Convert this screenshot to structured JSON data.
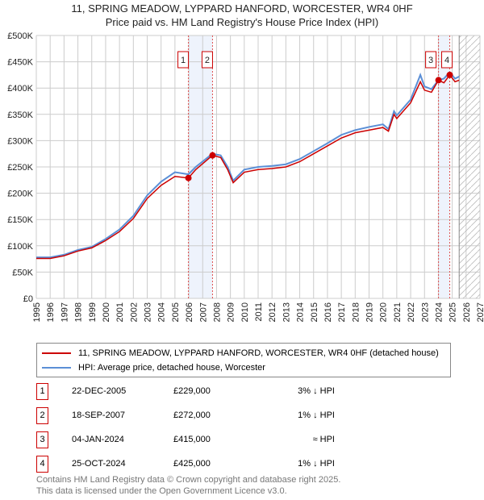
{
  "chart_data": {
    "type": "line",
    "title": "11, SPRING MEADOW, LYPPARD HANFORD, WORCESTER, WR4 0HF",
    "subtitle": "Price paid vs. HM Land Registry's House Price Index (HPI)",
    "xlim": [
      1995,
      2027
    ],
    "ylim": [
      0,
      500000
    ],
    "xticks": [
      "1995",
      "1996",
      "1997",
      "1998",
      "1999",
      "2000",
      "2001",
      "2002",
      "2003",
      "2004",
      "2005",
      "2006",
      "2007",
      "2008",
      "2009",
      "2010",
      "2011",
      "2012",
      "2013",
      "2014",
      "2015",
      "2016",
      "2017",
      "2018",
      "2019",
      "2020",
      "2021",
      "2022",
      "2023",
      "2024",
      "2025",
      "2026",
      "2027"
    ],
    "yticks": [
      {
        "v": 0,
        "label": "£0"
      },
      {
        "v": 50000,
        "label": "£50K"
      },
      {
        "v": 100000,
        "label": "£100K"
      },
      {
        "v": 150000,
        "label": "£150K"
      },
      {
        "v": 200000,
        "label": "£200K"
      },
      {
        "v": 250000,
        "label": "£250K"
      },
      {
        "v": 300000,
        "label": "£300K"
      },
      {
        "v": 350000,
        "label": "£350K"
      },
      {
        "v": 400000,
        "label": "£400K"
      },
      {
        "v": 450000,
        "label": "£450K"
      },
      {
        "v": 500000,
        "label": "£500K"
      }
    ],
    "series": [
      {
        "name": "11, SPRING MEADOW, LYPPARD HANFORD, WORCESTER, WR4 0HF (detached house)",
        "color": "#cc0000",
        "x": [
          1995,
          1996,
          1997,
          1998,
          1999,
          2000,
          2001,
          2002,
          2003,
          2004,
          2005,
          2005.97,
          2006.5,
          2007.7,
          2008.3,
          2008.8,
          2009.2,
          2010,
          2011,
          2012,
          2013,
          2014,
          2015,
          2016,
          2017,
          2018,
          2019,
          2020,
          2020.4,
          2020.8,
          2021,
          2022,
          2022.7,
          2023,
          2023.5,
          2024.01,
          2024.4,
          2024.82,
          2025.2,
          2025.5
        ],
        "y": [
          76000,
          76000,
          81000,
          90000,
          96000,
          110000,
          127000,
          152000,
          190000,
          215000,
          232000,
          229000,
          245000,
          272000,
          268000,
          245000,
          220000,
          240000,
          245000,
          247000,
          250000,
          260000,
          275000,
          290000,
          305000,
          315000,
          320000,
          325000,
          318000,
          350000,
          342000,
          372000,
          412000,
          396000,
          392000,
          415000,
          410000,
          425000,
          412000,
          415000
        ]
      },
      {
        "name": "HPI: Average price, detached house, Worcester",
        "color": "#5b8fd6",
        "x": [
          1995,
          1996,
          1997,
          1998,
          1999,
          2000,
          2001,
          2002,
          2003,
          2004,
          2005,
          2005.97,
          2006.5,
          2007.7,
          2008.3,
          2008.8,
          2009.2,
          2010,
          2011,
          2012,
          2013,
          2014,
          2015,
          2016,
          2017,
          2018,
          2019,
          2020,
          2020.4,
          2020.8,
          2021,
          2022,
          2022.7,
          2023,
          2023.5,
          2024.01,
          2024.4,
          2024.82,
          2025.2,
          2025.5
        ],
        "y": [
          78000,
          78000,
          83000,
          92000,
          98000,
          113000,
          131000,
          157000,
          196000,
          222000,
          240000,
          236000,
          250000,
          275000,
          272000,
          250000,
          224000,
          245000,
          250000,
          252000,
          255000,
          265000,
          280000,
          295000,
          311000,
          320000,
          326000,
          331000,
          322000,
          356000,
          348000,
          378000,
          425000,
          403000,
          398000,
          415000,
          418000,
          430000,
          418000,
          422000
        ]
      }
    ],
    "sales": [
      {
        "id": "1",
        "date": "22-DEC-2005",
        "x": 2005.97,
        "price": 229000,
        "price_label": "£229,000",
        "hpi": "3% ↓ HPI"
      },
      {
        "id": "2",
        "date": "18-SEP-2007",
        "x": 2007.71,
        "price": 272000,
        "price_label": "£272,000",
        "hpi": "1% ↓ HPI"
      },
      {
        "id": "3",
        "date": "04-JAN-2024",
        "x": 2024.01,
        "price": 415000,
        "price_label": "£415,000",
        "hpi": "≈ HPI"
      },
      {
        "id": "4",
        "date": "25-OCT-2024",
        "x": 2024.82,
        "price": 425000,
        "price_label": "£425,000",
        "hpi": "1% ↓ HPI"
      }
    ],
    "forecast_from": 2025.5,
    "legend": [
      "11, SPRING MEADOW, LYPPARD HANFORD, WORCESTER, WR4 0HF (detached house)",
      "HPI: Average price, detached house, Worcester"
    ],
    "legend_position": "below"
  },
  "footer": {
    "line1": "Contains HM Land Registry data © Crown copyright and database right 2025.",
    "line2": "This data is licensed under the Open Government Licence v3.0."
  }
}
